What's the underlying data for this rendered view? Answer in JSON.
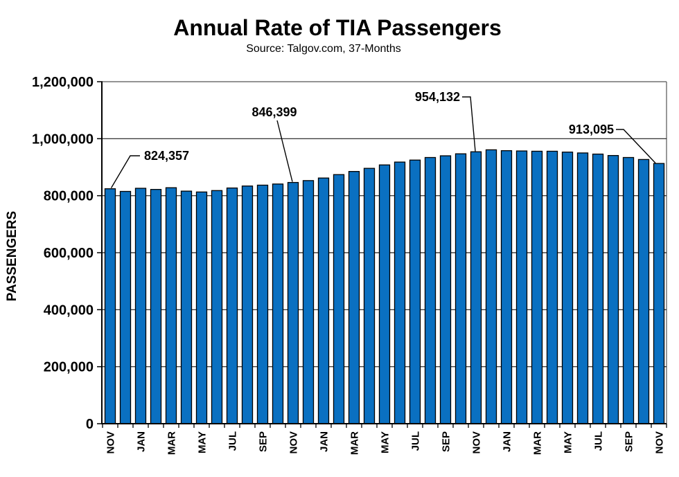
{
  "chart_data": {
    "type": "bar",
    "title": "Annual Rate of TIA Passengers",
    "subtitle": "Source: Talgov.com, 37-Months",
    "ylabel": "PASSENGERS",
    "xlabel": "",
    "ylim": [
      0,
      1200000
    ],
    "grid": true,
    "legend_position": "none",
    "yticks": [
      {
        "value": 0,
        "label": "0"
      },
      {
        "value": 200000,
        "label": "200,000"
      },
      {
        "value": 400000,
        "label": "400,000"
      },
      {
        "value": 600000,
        "label": "600,000"
      },
      {
        "value": 800000,
        "label": "800,000"
      },
      {
        "value": 1000000,
        "label": "1,000,000"
      },
      {
        "value": 1200000,
        "label": "1,200,000"
      }
    ],
    "xtick_labels": [
      "NOV",
      "JAN",
      "MAR",
      "MAY",
      "JUL",
      "SEP",
      "NOV",
      "JAN",
      "MAR",
      "MAY",
      "JUL",
      "SEP",
      "NOV",
      "JAN",
      "MAR",
      "MAY",
      "JUL",
      "SEP",
      "NOV"
    ],
    "xtick_every_n_bars": 2,
    "values": [
      824357,
      815000,
      826000,
      822000,
      828000,
      816000,
      813000,
      818000,
      827000,
      834000,
      837000,
      841000,
      846399,
      853000,
      862000,
      874000,
      885000,
      896000,
      908000,
      918000,
      925000,
      934000,
      940000,
      947000,
      954132,
      961000,
      958000,
      957000,
      956000,
      956000,
      953000,
      950000,
      946000,
      941000,
      934000,
      927000,
      913095
    ],
    "annotations": [
      {
        "bar_index": 0,
        "label": "824,357"
      },
      {
        "bar_index": 12,
        "label": "846,399"
      },
      {
        "bar_index": 24,
        "label": "954,132"
      },
      {
        "bar_index": 36,
        "label": "913,095"
      }
    ],
    "colors": {
      "bar_fill": "#0a70c1",
      "bar_stroke": "#000000",
      "grid_line": "#1a1a1a",
      "axis_line": "#000000",
      "frame_line": "#555555",
      "text": "#000000",
      "background": "#ffffff"
    }
  }
}
